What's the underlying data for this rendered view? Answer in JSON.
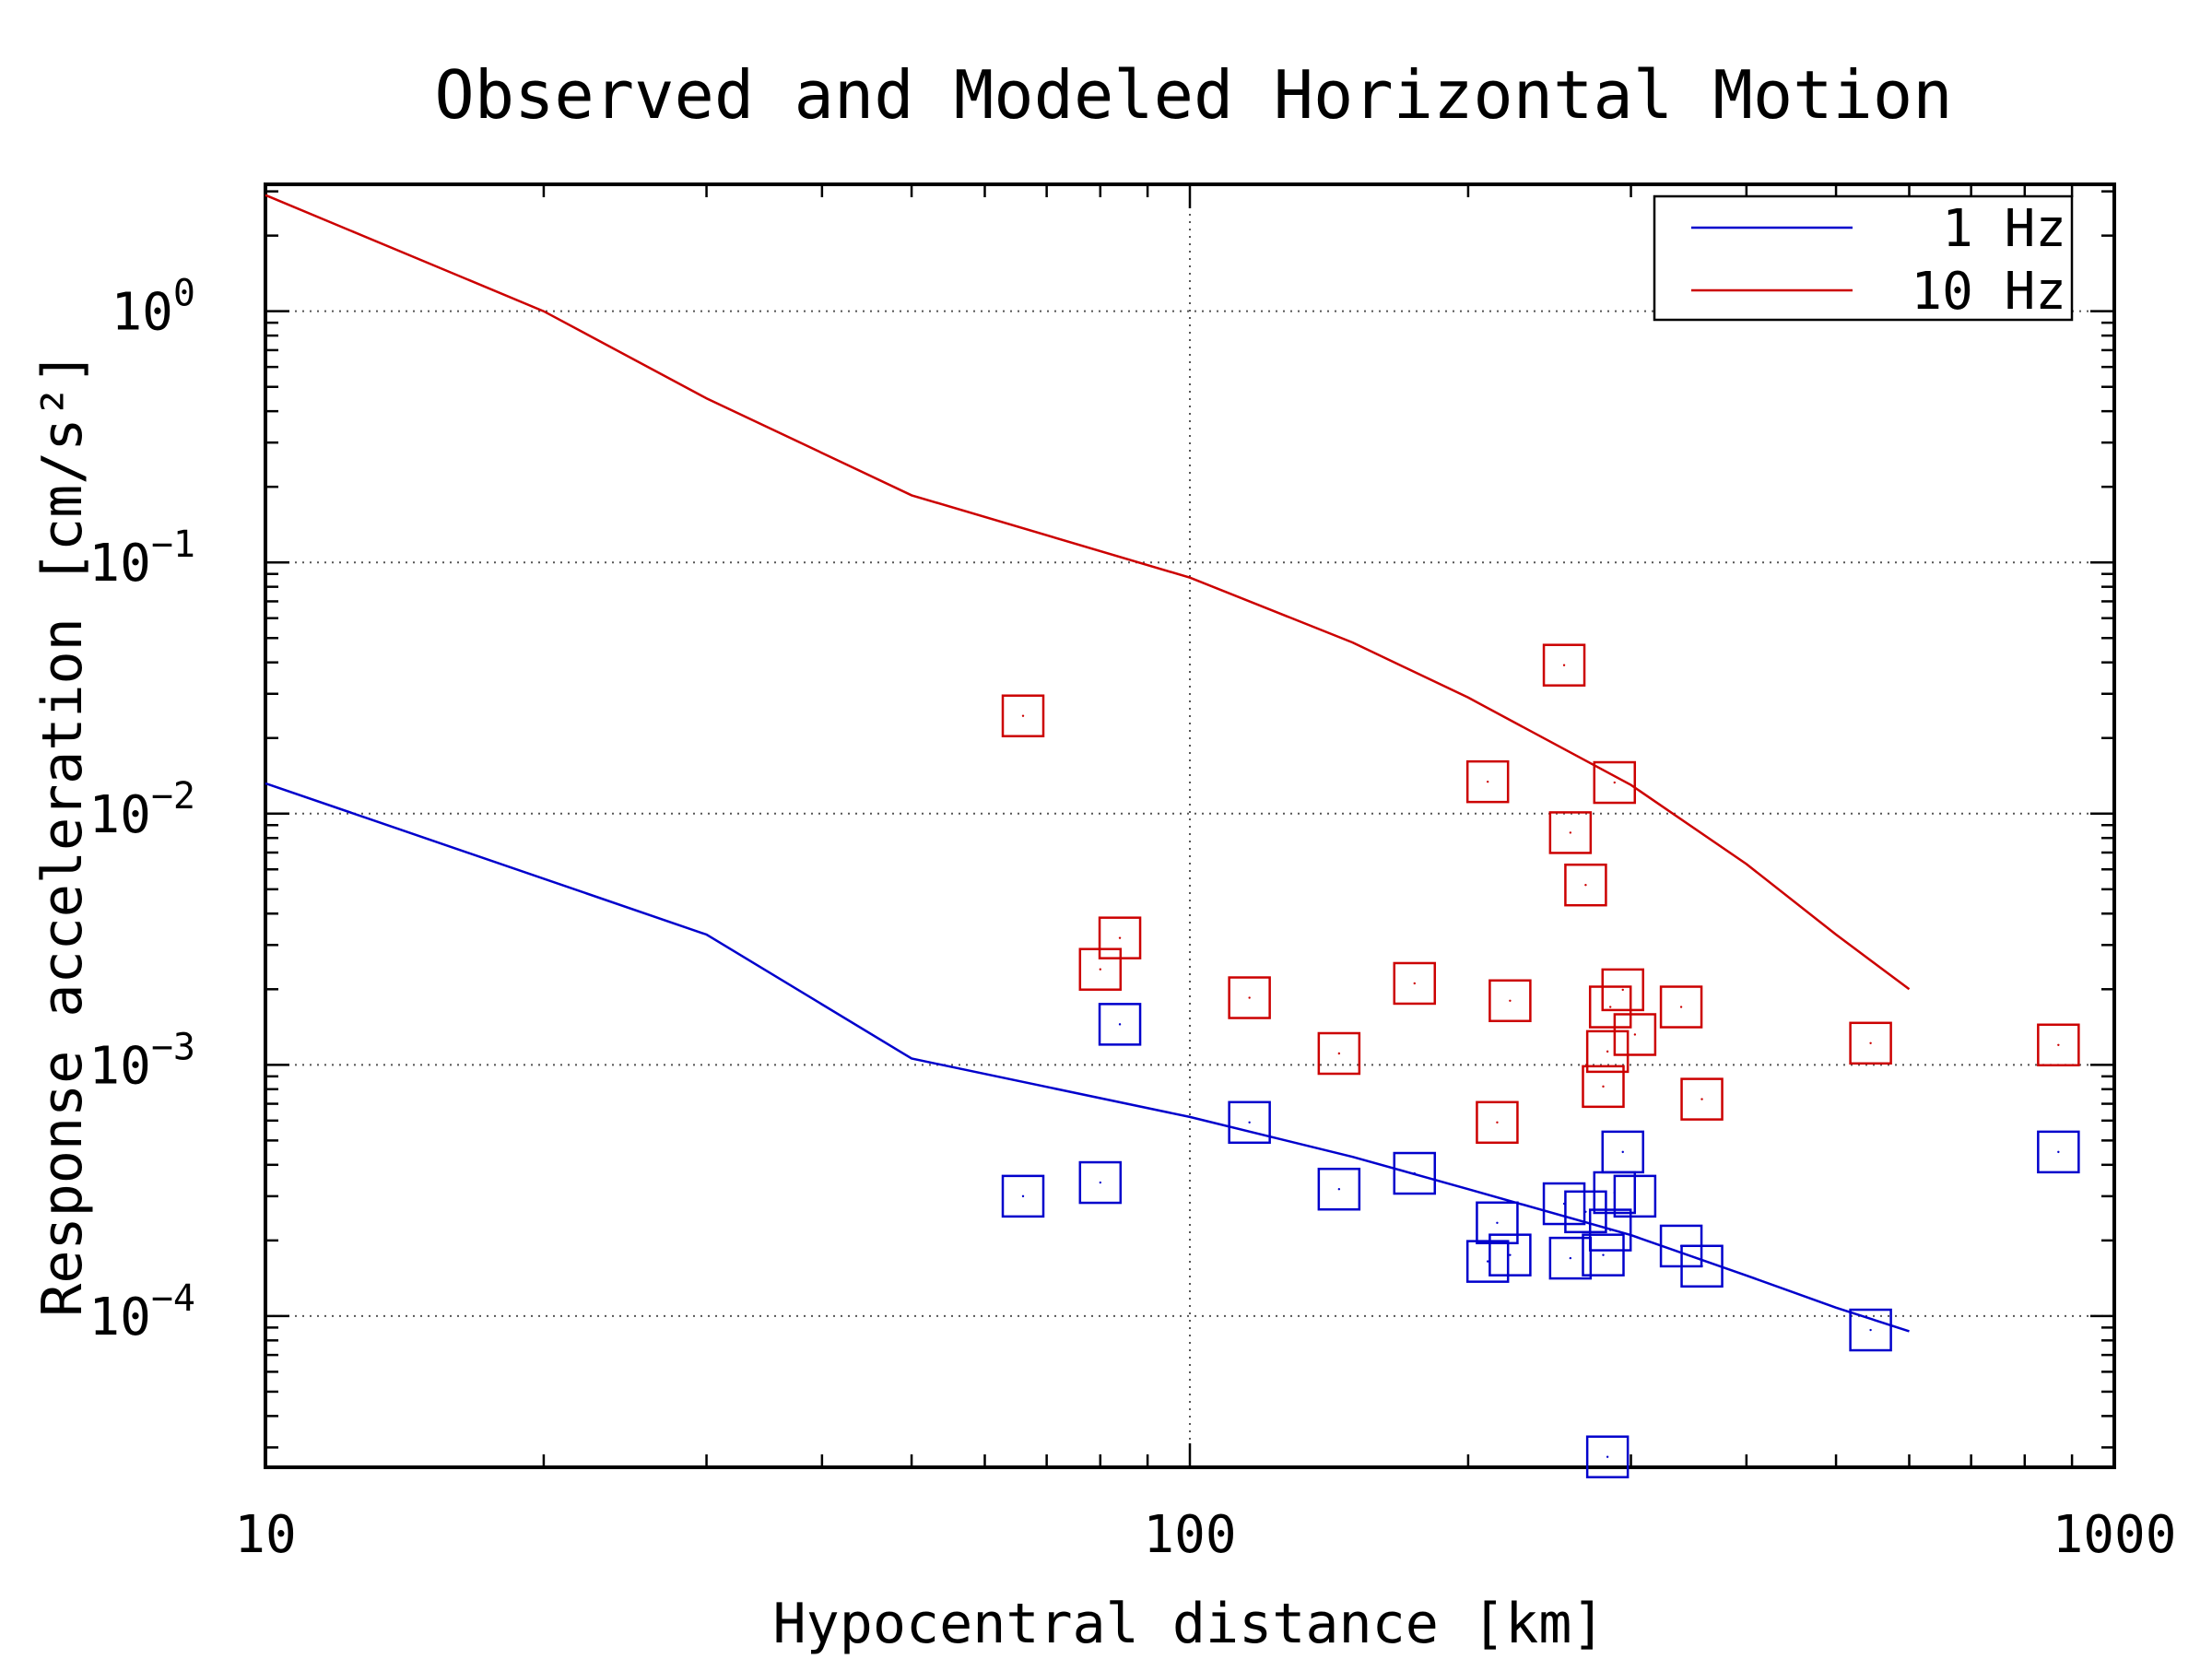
{
  "chart_data": {
    "type": "scatter",
    "title": "Observed and Modeled Horizontal Motion",
    "xlabel": "Hypocentral distance [km]",
    "ylabel": "Response acceleration [cm/s²]",
    "x_scale": "log",
    "y_scale": "log",
    "xlim": [
      10,
      1000
    ],
    "ylim": [
      2.5e-05,
      3.2
    ],
    "x_ticks": [
      {
        "value": 10,
        "label": "10"
      },
      {
        "value": 100,
        "label": "100"
      },
      {
        "value": 1000,
        "label": "1000"
      }
    ],
    "y_ticks": [
      {
        "value": 1,
        "base": "10",
        "exp": "0"
      },
      {
        "value": 0.1,
        "base": "10",
        "exp": "−1"
      },
      {
        "value": 0.01,
        "base": "10",
        "exp": "−2"
      },
      {
        "value": 0.001,
        "base": "10",
        "exp": "−3"
      },
      {
        "value": 0.0001,
        "base": "10",
        "exp": "−4"
      }
    ],
    "grid": true,
    "legend_position": "top-right",
    "series": [
      {
        "name": "1 Hz",
        "kind": "line",
        "color": "#0000cc",
        "x": [
          10,
          30,
          50,
          100,
          150,
          200,
          300,
          400,
          500,
          600
        ],
        "y": [
          0.0132,
          0.0033,
          0.00106,
          0.00062,
          0.00043,
          0.00032,
          0.00021,
          0.000145,
          0.000108,
          8.7e-05
        ]
      },
      {
        "name": "10 Hz",
        "kind": "line",
        "color": "#cc0000",
        "x": [
          10,
          20,
          30,
          50,
          100,
          150,
          200,
          300,
          400,
          500,
          600
        ],
        "y": [
          2.9,
          1.0,
          0.45,
          0.185,
          0.087,
          0.048,
          0.029,
          0.013,
          0.0063,
          0.0033,
          0.002
        ]
      },
      {
        "kind": "scatter",
        "color": "#cc0000",
        "points": [
          {
            "x": 66,
            "y": 0.0245
          },
          {
            "x": 80,
            "y": 0.0024
          },
          {
            "x": 84,
            "y": 0.0032
          },
          {
            "x": 116,
            "y": 0.00185
          },
          {
            "x": 145,
            "y": 0.00111
          },
          {
            "x": 175,
            "y": 0.00211
          },
          {
            "x": 210,
            "y": 0.0134
          },
          {
            "x": 215,
            "y": 0.00059
          },
          {
            "x": 222,
            "y": 0.0018
          },
          {
            "x": 254,
            "y": 0.039
          },
          {
            "x": 258,
            "y": 0.0084
          },
          {
            "x": 268,
            "y": 0.0052
          },
          {
            "x": 280,
            "y": 0.00082
          },
          {
            "x": 283,
            "y": 0.00113
          },
          {
            "x": 285,
            "y": 0.0017
          },
          {
            "x": 288,
            "y": 0.0133
          },
          {
            "x": 294,
            "y": 0.00199
          },
          {
            "x": 303,
            "y": 0.00132
          },
          {
            "x": 340,
            "y": 0.0017
          },
          {
            "x": 358,
            "y": 0.00073
          },
          {
            "x": 545,
            "y": 0.00122
          },
          {
            "x": 870,
            "y": 0.0012
          }
        ]
      },
      {
        "kind": "scatter",
        "color": "#0000cc",
        "points": [
          {
            "x": 66,
            "y": 0.0003
          },
          {
            "x": 80,
            "y": 0.00034
          },
          {
            "x": 84,
            "y": 0.00145
          },
          {
            "x": 116,
            "y": 0.00059
          },
          {
            "x": 145,
            "y": 0.00032
          },
          {
            "x": 175,
            "y": 0.00037
          },
          {
            "x": 210,
            "y": 0.000165
          },
          {
            "x": 215,
            "y": 0.000235
          },
          {
            "x": 222,
            "y": 0.000175
          },
          {
            "x": 254,
            "y": 0.00028
          },
          {
            "x": 258,
            "y": 0.00017
          },
          {
            "x": 268,
            "y": 0.00026
          },
          {
            "x": 280,
            "y": 0.000175
          },
          {
            "x": 283,
            "y": 2.75e-05
          },
          {
            "x": 285,
            "y": 0.00022
          },
          {
            "x": 288,
            "y": 0.00031
          },
          {
            "x": 294,
            "y": 0.00045
          },
          {
            "x": 303,
            "y": 0.0003
          },
          {
            "x": 340,
            "y": 0.00019
          },
          {
            "x": 358,
            "y": 0.000158
          },
          {
            "x": 545,
            "y": 8.8e-05
          },
          {
            "x": 870,
            "y": 0.00045
          }
        ]
      }
    ]
  }
}
